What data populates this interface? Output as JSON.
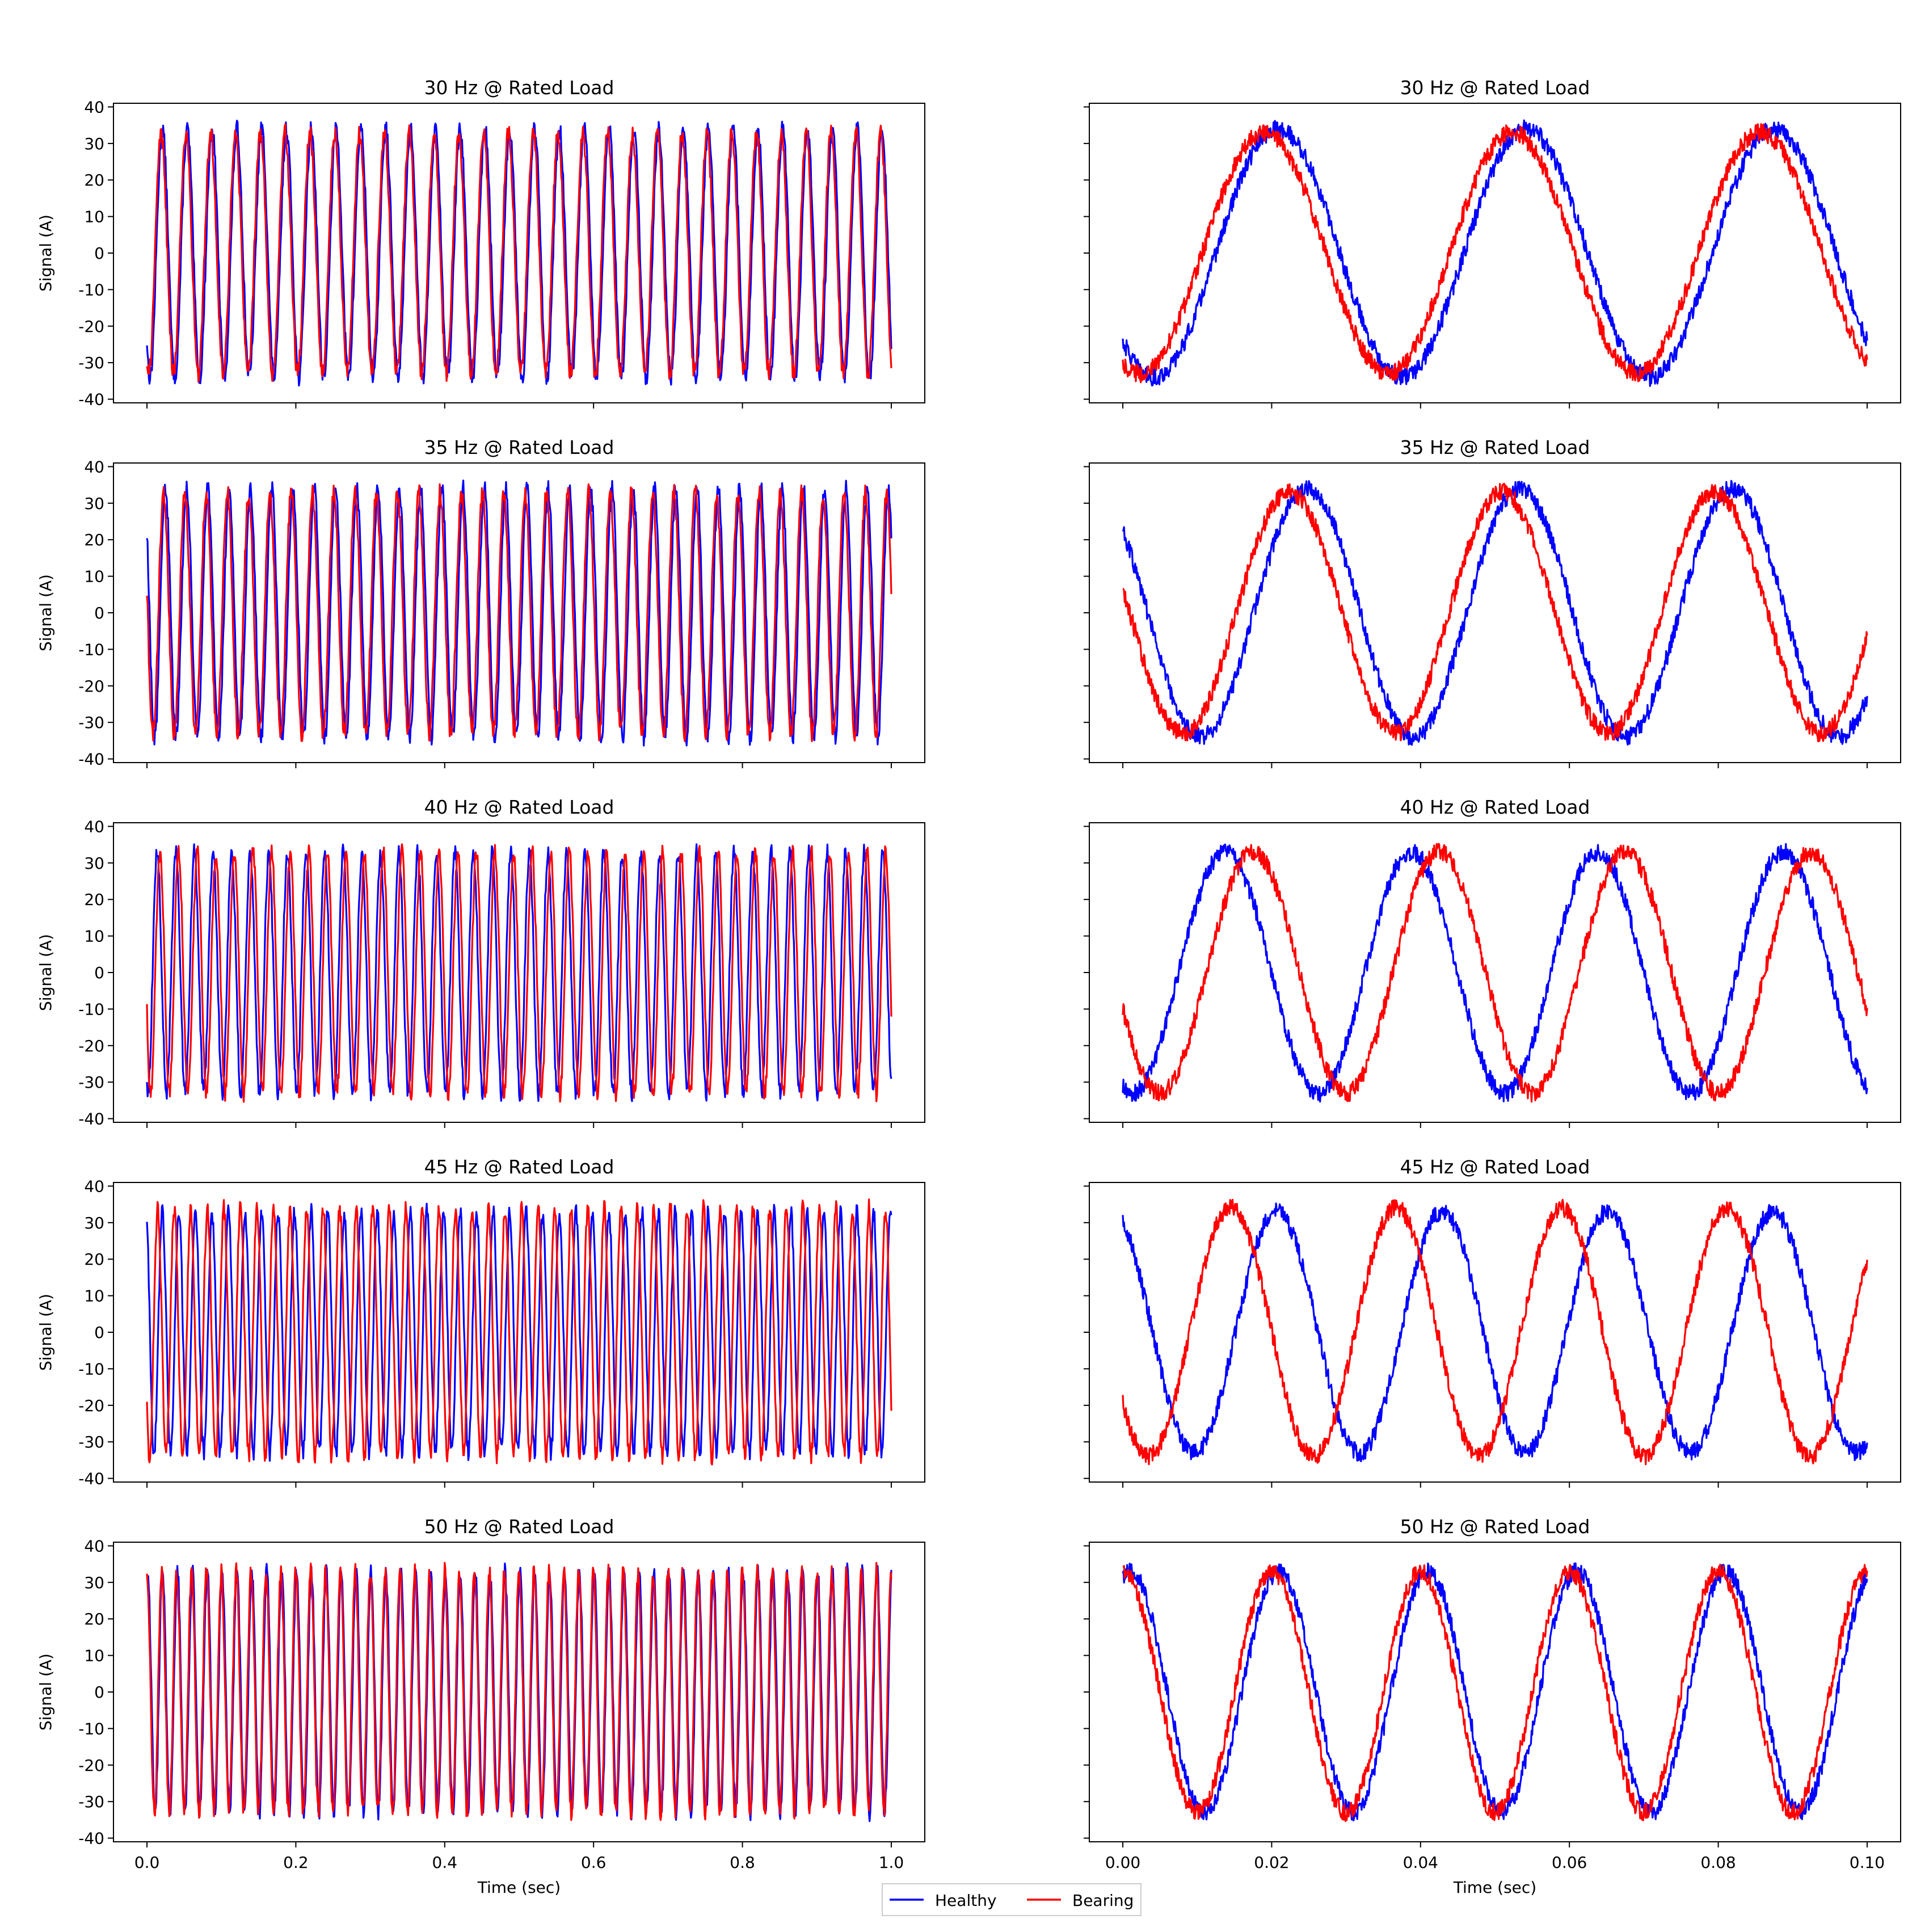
{
  "legend": {
    "placement": "bottom-center",
    "entries": [
      {
        "name": "Healthy",
        "color": "#0000ff"
      },
      {
        "name": "Bearing",
        "color": "#ff0000"
      }
    ]
  },
  "chart_data": [
    {
      "type": "line",
      "title": "30 Hz @ Rated Load",
      "xlabel": "",
      "ylabel": "Signal (A)",
      "xlim": [
        0,
        1.0
      ],
      "ylim": [
        -40,
        40
      ],
      "xticks": [
        0.0,
        0.2,
        0.4,
        0.6,
        0.8,
        1.0
      ],
      "yticks": [
        -40,
        -30,
        -20,
        -10,
        0,
        10,
        20,
        30,
        40
      ],
      "show_xticklabels": false,
      "show_yticklabels": true,
      "grid": false,
      "series": [
        {
          "name": "Healthy",
          "color": "#0000ff",
          "amplitude": 34,
          "frequency_hz": 30,
          "phase_deg": 225,
          "noise": 1.5
        },
        {
          "name": "Bearing",
          "color": "#ff0000",
          "amplitude": 33,
          "frequency_hz": 30,
          "phase_deg": 245,
          "noise": 1.5
        }
      ]
    },
    {
      "type": "line",
      "title": "30 Hz @ Rated Load",
      "xlabel": "",
      "ylabel": "",
      "xlim": [
        0,
        0.1
      ],
      "ylim": [
        -40,
        40
      ],
      "xticks": [
        0.0,
        0.02,
        0.04,
        0.06,
        0.08,
        0.1
      ],
      "yticks": [
        -40,
        -30,
        -20,
        -10,
        0,
        10,
        20,
        30,
        40
      ],
      "show_xticklabels": false,
      "show_yticklabels": false,
      "grid": false,
      "series": [
        {
          "name": "Healthy",
          "color": "#0000ff",
          "amplitude": 34,
          "frequency_hz": 30,
          "phase_deg": 225,
          "noise": 1.5
        },
        {
          "name": "Bearing",
          "color": "#ff0000",
          "amplitude": 33,
          "frequency_hz": 30,
          "phase_deg": 245,
          "noise": 1.5
        }
      ]
    },
    {
      "type": "line",
      "title": "35 Hz @ Rated Load",
      "xlabel": "",
      "ylabel": "Signal (A)",
      "xlim": [
        0,
        1.0
      ],
      "ylim": [
        -40,
        40
      ],
      "xticks": [
        0.0,
        0.2,
        0.4,
        0.6,
        0.8,
        1.0
      ],
      "yticks": [
        -40,
        -30,
        -20,
        -10,
        0,
        10,
        20,
        30,
        40
      ],
      "show_xticklabels": false,
      "show_yticklabels": true,
      "grid": false,
      "series": [
        {
          "name": "Healthy",
          "color": "#0000ff",
          "amplitude": 34,
          "frequency_hz": 35,
          "phase_deg": 138,
          "noise": 1.5
        },
        {
          "name": "Bearing",
          "color": "#ff0000",
          "amplitude": 33,
          "frequency_hz": 35,
          "phase_deg": 168,
          "noise": 1.5
        }
      ]
    },
    {
      "type": "line",
      "title": "35 Hz @ Rated Load",
      "xlabel": "",
      "ylabel": "",
      "xlim": [
        0,
        0.1
      ],
      "ylim": [
        -40,
        40
      ],
      "xticks": [
        0.0,
        0.02,
        0.04,
        0.06,
        0.08,
        0.1
      ],
      "yticks": [
        -40,
        -30,
        -20,
        -10,
        0,
        10,
        20,
        30,
        40
      ],
      "show_xticklabels": false,
      "show_yticklabels": false,
      "grid": false,
      "series": [
        {
          "name": "Healthy",
          "color": "#0000ff",
          "amplitude": 34,
          "frequency_hz": 35,
          "phase_deg": 138,
          "noise": 1.5
        },
        {
          "name": "Bearing",
          "color": "#ff0000",
          "amplitude": 33,
          "frequency_hz": 35,
          "phase_deg": 168,
          "noise": 1.5
        }
      ]
    },
    {
      "type": "line",
      "title": "40 Hz @ Rated Load",
      "xlabel": "",
      "ylabel": "Signal (A)",
      "xlim": [
        0,
        1.0
      ],
      "ylim": [
        -40,
        40
      ],
      "xticks": [
        0.0,
        0.2,
        0.4,
        0.6,
        0.8,
        1.0
      ],
      "yticks": [
        -40,
        -30,
        -20,
        -10,
        0,
        10,
        20,
        30,
        40
      ],
      "show_xticklabels": false,
      "show_yticklabels": true,
      "grid": false,
      "series": [
        {
          "name": "Healthy",
          "color": "#0000ff",
          "amplitude": 33,
          "frequency_hz": 40,
          "phase_deg": 252,
          "noise": 1.5
        },
        {
          "name": "Bearing",
          "color": "#ff0000",
          "amplitude": 33,
          "frequency_hz": 40,
          "phase_deg": 198,
          "noise": 1.5
        }
      ]
    },
    {
      "type": "line",
      "title": "40 Hz @ Rated Load",
      "xlabel": "",
      "ylabel": "",
      "xlim": [
        0,
        0.1
      ],
      "ylim": [
        -40,
        40
      ],
      "xticks": [
        0.0,
        0.02,
        0.04,
        0.06,
        0.08,
        0.1
      ],
      "yticks": [
        -40,
        -30,
        -20,
        -10,
        0,
        10,
        20,
        30,
        40
      ],
      "show_xticklabels": false,
      "show_yticklabels": false,
      "grid": false,
      "series": [
        {
          "name": "Healthy",
          "color": "#0000ff",
          "amplitude": 33,
          "frequency_hz": 40,
          "phase_deg": 252,
          "noise": 1.5
        },
        {
          "name": "Bearing",
          "color": "#ff0000",
          "amplitude": 33,
          "frequency_hz": 40,
          "phase_deg": 198,
          "noise": 1.5
        }
      ]
    },
    {
      "type": "line",
      "title": "45 Hz @ Rated Load",
      "xlabel": "",
      "ylabel": "Signal (A)",
      "xlim": [
        0,
        1.0
      ],
      "ylim": [
        -40,
        40
      ],
      "xticks": [
        0.0,
        0.2,
        0.4,
        0.6,
        0.8,
        1.0
      ],
      "yticks": [
        -40,
        -30,
        -20,
        -10,
        0,
        10,
        20,
        30,
        40
      ],
      "show_xticklabels": false,
      "show_yticklabels": true,
      "grid": false,
      "series": [
        {
          "name": "Healthy",
          "color": "#0000ff",
          "amplitude": 33,
          "frequency_hz": 45,
          "phase_deg": 115,
          "noise": 1.5
        },
        {
          "name": "Bearing",
          "color": "#ff0000",
          "amplitude": 34,
          "frequency_hz": 45,
          "phase_deg": 215,
          "noise": 1.5
        }
      ]
    },
    {
      "type": "line",
      "title": "45 Hz @ Rated Load",
      "xlabel": "",
      "ylabel": "",
      "xlim": [
        0,
        0.1
      ],
      "ylim": [
        -40,
        40
      ],
      "xticks": [
        0.0,
        0.02,
        0.04,
        0.06,
        0.08,
        0.1
      ],
      "yticks": [
        -40,
        -30,
        -20,
        -10,
        0,
        10,
        20,
        30,
        40
      ],
      "show_xticklabels": false,
      "show_yticklabels": false,
      "grid": false,
      "series": [
        {
          "name": "Healthy",
          "color": "#0000ff",
          "amplitude": 33,
          "frequency_hz": 45,
          "phase_deg": 115,
          "noise": 1.5
        },
        {
          "name": "Bearing",
          "color": "#ff0000",
          "amplitude": 34,
          "frequency_hz": 45,
          "phase_deg": 215,
          "noise": 1.5
        }
      ]
    },
    {
      "type": "line",
      "title": "50 Hz @ Rated Load",
      "xlabel": "Time (sec)",
      "ylabel": "Signal (A)",
      "xlim": [
        0,
        1.0
      ],
      "ylim": [
        -40,
        40
      ],
      "xticks": [
        0.0,
        0.2,
        0.4,
        0.6,
        0.8,
        1.0
      ],
      "yticks": [
        -40,
        -30,
        -20,
        -10,
        0,
        10,
        20,
        30,
        40
      ],
      "show_xticklabels": true,
      "show_yticklabels": true,
      "grid": false,
      "series": [
        {
          "name": "Healthy",
          "color": "#0000ff",
          "amplitude": 33,
          "frequency_hz": 50,
          "phase_deg": 72,
          "noise": 1.5
        },
        {
          "name": "Bearing",
          "color": "#ff0000",
          "amplitude": 33,
          "frequency_hz": 50,
          "phase_deg": 90,
          "noise": 1.5
        }
      ]
    },
    {
      "type": "line",
      "title": "50 Hz @ Rated Load",
      "xlabel": "Time (sec)",
      "ylabel": "",
      "xlim": [
        0,
        0.1
      ],
      "ylim": [
        -40,
        40
      ],
      "xticks": [
        0.0,
        0.02,
        0.04,
        0.06,
        0.08,
        0.1
      ],
      "yticks": [
        -40,
        -30,
        -20,
        -10,
        0,
        10,
        20,
        30,
        40
      ],
      "show_xticklabels": true,
      "show_yticklabels": false,
      "grid": false,
      "series": [
        {
          "name": "Healthy",
          "color": "#0000ff",
          "amplitude": 33,
          "frequency_hz": 50,
          "phase_deg": 72,
          "noise": 1.5
        },
        {
          "name": "Bearing",
          "color": "#ff0000",
          "amplitude": 33,
          "frequency_hz": 50,
          "phase_deg": 90,
          "noise": 1.5
        }
      ]
    }
  ]
}
